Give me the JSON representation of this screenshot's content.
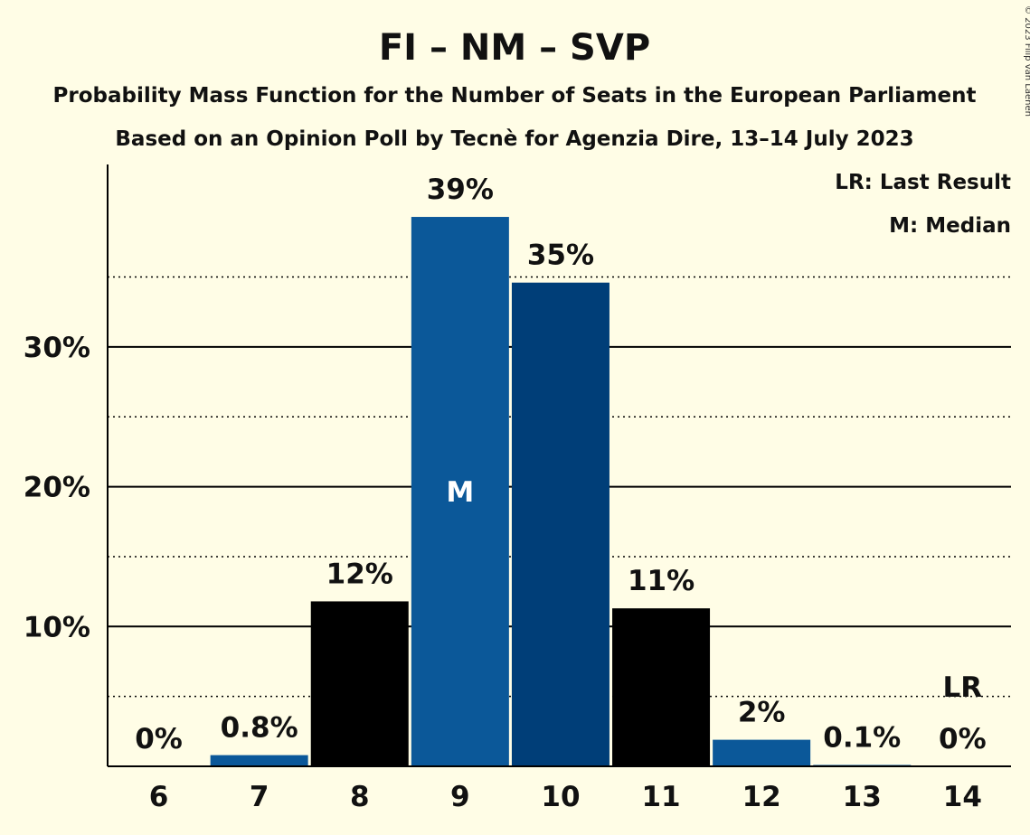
{
  "chart_data": {
    "type": "bar",
    "title": "FI – NM – SVP",
    "subtitle": "Probability Mass Function for the Number of Seats in the European Parliament",
    "subtitle2": "Based on an Opinion Poll by Tecnè for Agenzia Dire, 13–14 July 2023",
    "copyright": "© 2023 Filip van Laenen",
    "legend": {
      "placement": "top-right",
      "entries": [
        "LR: Last Result",
        "M: Median"
      ]
    },
    "categories": [
      "6",
      "7",
      "8",
      "9",
      "10",
      "11",
      "12",
      "13",
      "14"
    ],
    "values": [
      0,
      0.8,
      11.8,
      39.3,
      34.6,
      11.3,
      1.9,
      0.1,
      0
    ],
    "labels": [
      "0%",
      "0.8%",
      "12%",
      "39%",
      "35%",
      "11%",
      "2%",
      "0.1%",
      "0%"
    ],
    "bar_colors": [
      "#0B5899",
      "#0B5899",
      "#000000",
      "#0B5899",
      "#003E78",
      "#000000",
      "#0B5899",
      "#0B5899",
      "#0B5899"
    ],
    "median_index": 3,
    "median_label": "M",
    "last_result_index": 8,
    "last_result_label": "LR",
    "ylim": [
      0,
      43
    ],
    "y_ticks": [
      10,
      20,
      30
    ],
    "y_tick_labels": [
      "10%",
      "20%",
      "30%"
    ],
    "y_minor_ticks": [
      5,
      15,
      25,
      35
    ],
    "grid": true,
    "colors": {
      "background": "#FFFDE6",
      "blue": "#0B5899",
      "dark_blue": "#003E78",
      "black": "#000000"
    }
  }
}
